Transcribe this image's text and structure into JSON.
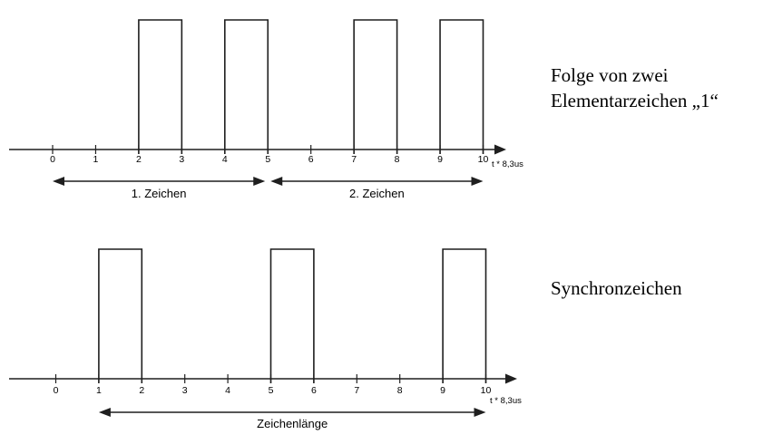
{
  "colors": {
    "line": "#1f1f1f",
    "text": "#000000",
    "background": "#ffffff"
  },
  "diagrams": [
    {
      "id": "elementarzeichen",
      "side_label": [
        "Folge von zwei",
        "Elementarzeichen „1“"
      ],
      "axis_label": "t * 8,3us",
      "ticks": [
        0,
        1,
        2,
        3,
        4,
        5,
        6,
        7,
        8,
        9,
        10
      ],
      "pulses": [
        [
          2,
          3
        ],
        [
          4,
          5
        ],
        [
          7,
          8
        ],
        [
          9,
          10
        ]
      ],
      "spans": [
        {
          "label": "1. Zeichen",
          "from": 0,
          "to": 5
        },
        {
          "label": "2. Zeichen",
          "from": 5,
          "to": 10
        }
      ]
    },
    {
      "id": "synchronzeichen",
      "side_label": [
        "Synchronzeichen"
      ],
      "axis_label": "t * 8,3us",
      "ticks": [
        0,
        1,
        2,
        3,
        4,
        5,
        6,
        7,
        8,
        9,
        10
      ],
      "pulses": [
        [
          1,
          2
        ],
        [
          5,
          6
        ],
        [
          9,
          10
        ]
      ],
      "spans": [
        {
          "label": "Zeichenlänge",
          "from": 1,
          "to": 10
        }
      ]
    }
  ]
}
